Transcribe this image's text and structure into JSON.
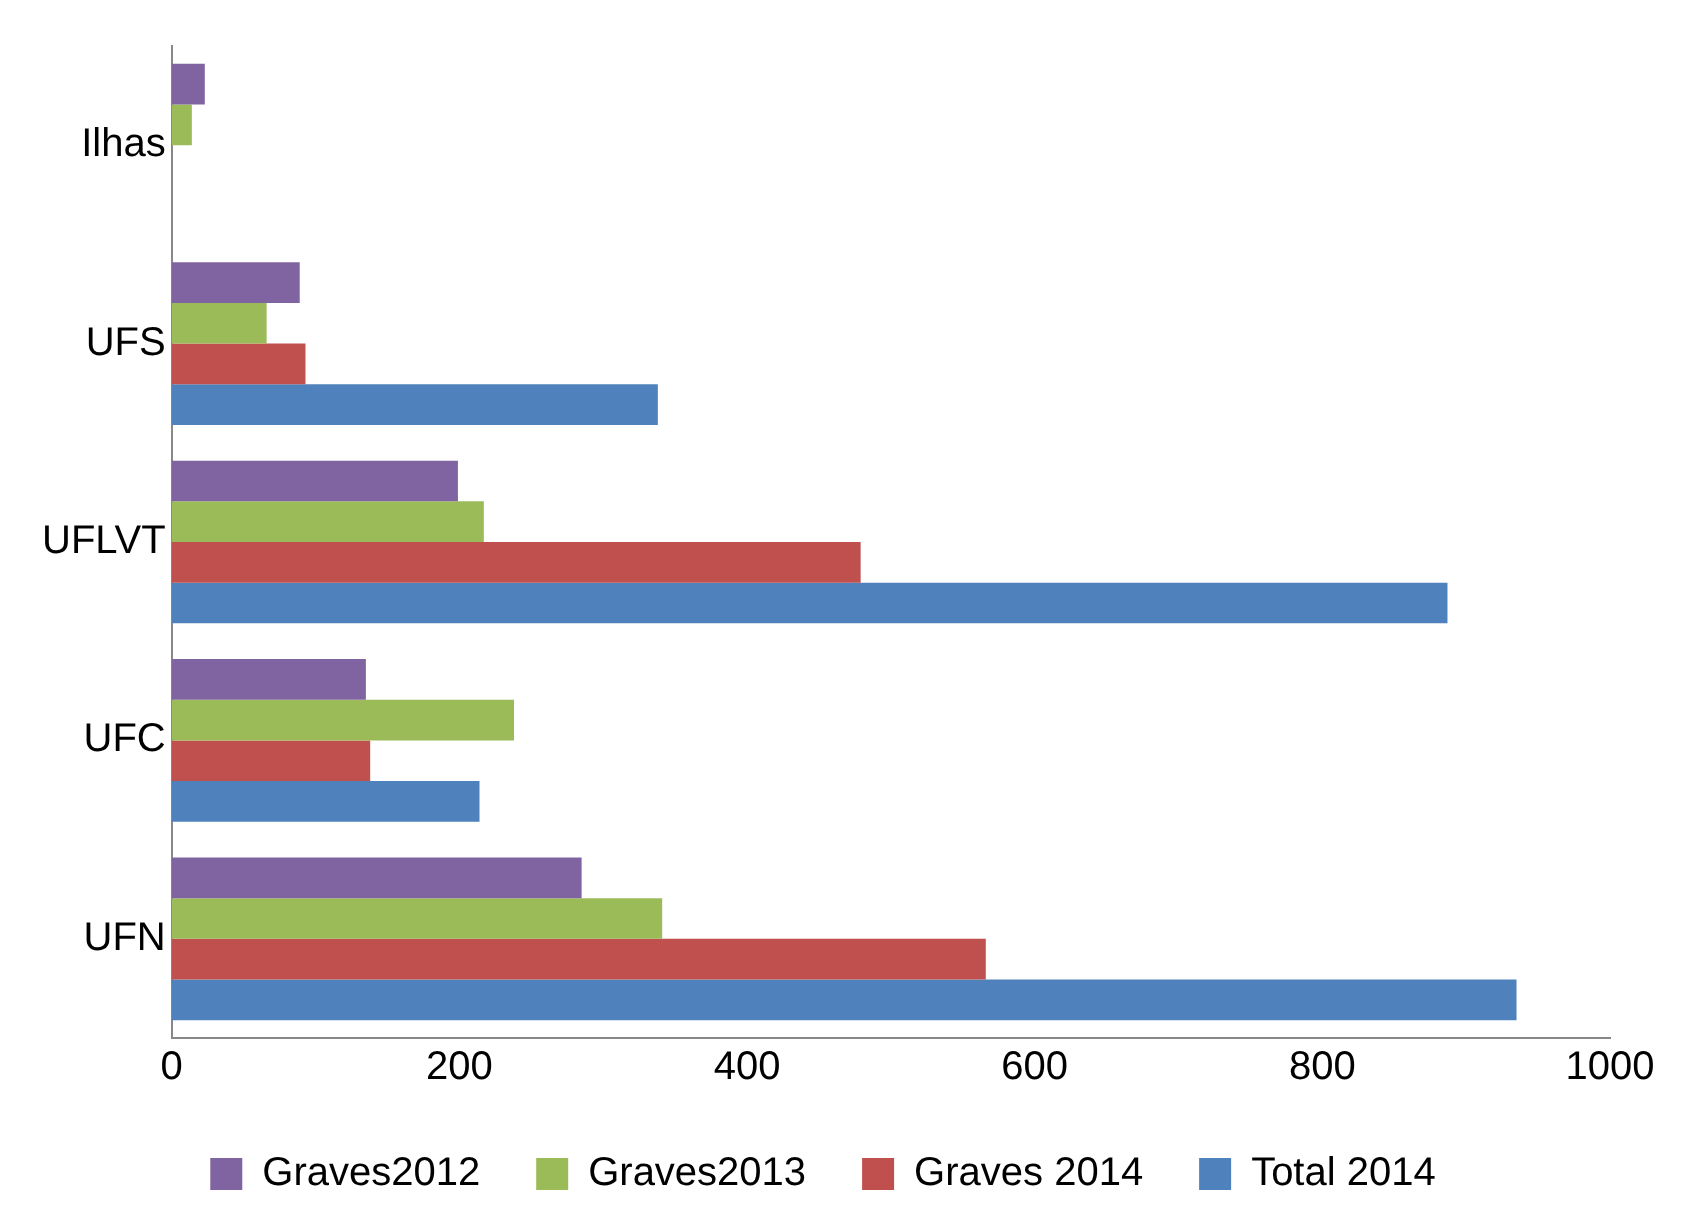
{
  "chart_data": {
    "type": "bar",
    "orientation": "horizontal",
    "categories": [
      "Ilhas",
      "UFS",
      "UFLVT",
      "UFC",
      "UFN"
    ],
    "series": [
      {
        "name": "Graves2012",
        "color": "#8064a2",
        "values": [
          23,
          89,
          199,
          135,
          285
        ]
      },
      {
        "name": "Graves2013",
        "color": "#9bbb59",
        "values": [
          14,
          66,
          217,
          238,
          341
        ]
      },
      {
        "name": "Graves 2014",
        "color": "#c0504d",
        "values": [
          0,
          93,
          479,
          138,
          566
        ]
      },
      {
        "name": "Total 2014",
        "color": "#4f81bd",
        "values": [
          0,
          338,
          887,
          214,
          935
        ]
      }
    ],
    "xlim": [
      0,
      1000
    ],
    "xticks": [
      0,
      200,
      400,
      600,
      800,
      1000
    ],
    "grid": false,
    "legend": "bottom"
  }
}
